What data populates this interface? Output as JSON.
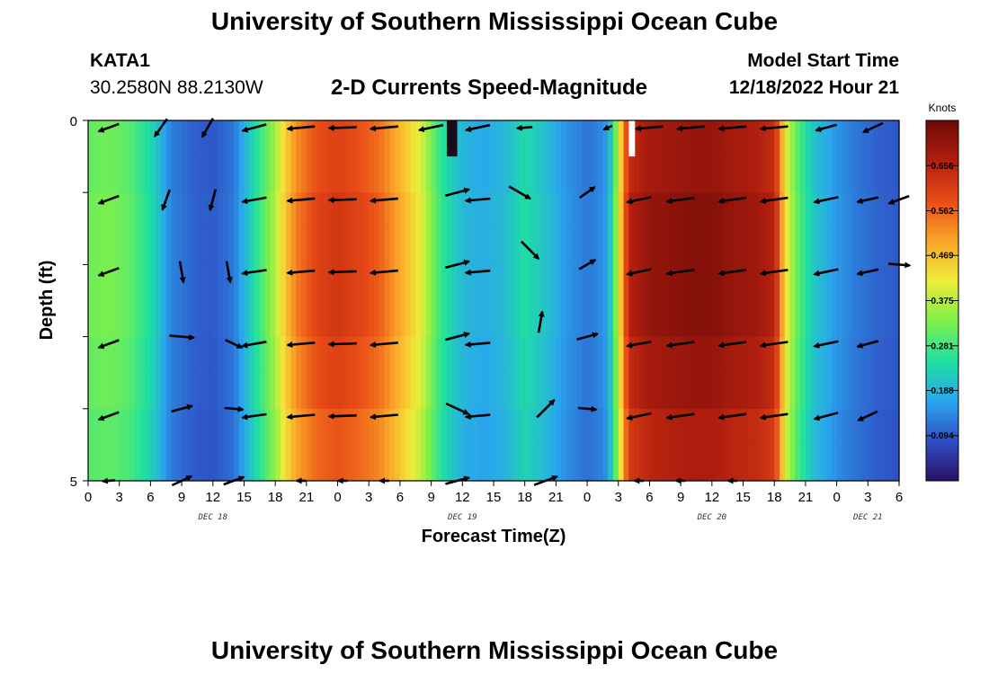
{
  "header": {
    "title": "University of Southern Mississippi Ocean Cube",
    "station": "KATA1",
    "coords": "30.2580N  88.2130W",
    "subtitle": "2-D Currents Speed-Magnitude",
    "model_start_label": "Model Start Time",
    "model_start_value": "12/18/2022 Hour 21"
  },
  "footer": {
    "title": "University of Southern Mississippi Ocean Cube"
  },
  "chart_data": {
    "type": "heatmap",
    "title": "2-D Currents Speed-Magnitude",
    "xlabel": "Forecast Time(Z)",
    "ylabel": "Depth (ft)",
    "colorbar_label": "Knots",
    "colorbar_ticks": [
      "0.094",
      "0.188",
      "0.281",
      "0.375",
      "0.469",
      "0.562",
      "0.656"
    ],
    "colorbar_range": [
      0,
      0.75
    ],
    "x_range_hours": [
      0,
      78
    ],
    "x_tick_labels": [
      "0",
      "3",
      "6",
      "9",
      "12",
      "15",
      "18",
      "21",
      "0",
      "3",
      "6",
      "9",
      "12",
      "15",
      "18",
      "21",
      "0",
      "3",
      "6",
      "9",
      "12",
      "15",
      "18",
      "21",
      "0",
      "3",
      "6"
    ],
    "date_labels": [
      {
        "label": "DEC 18",
        "hour": 12
      },
      {
        "label": "DEC 19",
        "hour": 36
      },
      {
        "label": "DEC 20",
        "hour": 60
      },
      {
        "label": "DEC 21",
        "hour": 75
      }
    ],
    "y_range": [
      0,
      5
    ],
    "y_tick_labels": [
      "0",
      "5"
    ],
    "speed_profile": {
      "hours": [
        0,
        2,
        4,
        6,
        8,
        10,
        12,
        14,
        15,
        16,
        17,
        18,
        19,
        20,
        22,
        24,
        26,
        28,
        30,
        32,
        33,
        34,
        35,
        36,
        38,
        40,
        42,
        44,
        46,
        48,
        49,
        50,
        50.5,
        51,
        51.5,
        52,
        54,
        56,
        58,
        60,
        62,
        64,
        66,
        66.5,
        67,
        68,
        69,
        70,
        72,
        74,
        76,
        78
      ],
      "values": [
        0.31,
        0.32,
        0.3,
        0.24,
        0.13,
        0.1,
        0.09,
        0.12,
        0.18,
        0.24,
        0.3,
        0.36,
        0.45,
        0.52,
        0.58,
        0.6,
        0.58,
        0.55,
        0.48,
        0.4,
        0.33,
        0.26,
        0.22,
        0.19,
        0.17,
        0.19,
        0.24,
        0.2,
        0.15,
        0.12,
        0.13,
        0.16,
        0.26,
        0.38,
        0.52,
        0.64,
        0.68,
        0.69,
        0.7,
        0.7,
        0.68,
        0.67,
        0.64,
        0.55,
        0.42,
        0.32,
        0.25,
        0.2,
        0.15,
        0.12,
        0.1,
        0.09
      ]
    },
    "depth_factor": [
      1.0,
      1.03,
      1.03,
      1.0,
      0.96,
      0.9
    ],
    "missing_cells": [
      {
        "hour_start": 34.5,
        "hour_end": 35.5,
        "depth_start": 0,
        "depth_end": 0.5,
        "fill": "#1a0a1a"
      },
      {
        "hour_start": 52,
        "hour_end": 52.6,
        "depth_start": 0,
        "depth_end": 0.5,
        "fill": "#ffffff"
      }
    ],
    "vectors": [
      {
        "hour": 2,
        "depth": 0.1,
        "dir": 250,
        "len": 0.7
      },
      {
        "hour": 7,
        "depth": 0.1,
        "dir": 215,
        "len": 0.7
      },
      {
        "hour": 11.5,
        "depth": 0.1,
        "dir": 210,
        "len": 0.7
      },
      {
        "hour": 16,
        "depth": 0.1,
        "dir": 255,
        "len": 0.8
      },
      {
        "hour": 20.5,
        "depth": 0.1,
        "dir": 265,
        "len": 0.9
      },
      {
        "hour": 24.5,
        "depth": 0.1,
        "dir": 268,
        "len": 0.9
      },
      {
        "hour": 28.5,
        "depth": 0.1,
        "dir": 265,
        "len": 0.9
      },
      {
        "hour": 33,
        "depth": 0.1,
        "dir": 258,
        "len": 0.8
      },
      {
        "hour": 37.5,
        "depth": 0.1,
        "dir": 258,
        "len": 0.8
      },
      {
        "hour": 42,
        "depth": 0.1,
        "dir": 265,
        "len": 0.5
      },
      {
        "hour": 50,
        "depth": 0.1,
        "dir": 245,
        "len": 0.3
      },
      {
        "hour": 54,
        "depth": 0.1,
        "dir": 265,
        "len": 0.9
      },
      {
        "hour": 58,
        "depth": 0.1,
        "dir": 265,
        "len": 0.9
      },
      {
        "hour": 62,
        "depth": 0.1,
        "dir": 265,
        "len": 0.9
      },
      {
        "hour": 66,
        "depth": 0.1,
        "dir": 265,
        "len": 0.9
      },
      {
        "hour": 71,
        "depth": 0.1,
        "dir": 255,
        "len": 0.7
      },
      {
        "hour": 75.5,
        "depth": 0.1,
        "dir": 245,
        "len": 0.7
      },
      {
        "hour": 2,
        "depth": 1.1,
        "dir": 250,
        "len": 0.7
      },
      {
        "hour": 7.5,
        "depth": 1.1,
        "dir": 200,
        "len": 0.7
      },
      {
        "hour": 12,
        "depth": 1.1,
        "dir": 195,
        "len": 0.7
      },
      {
        "hour": 16,
        "depth": 1.1,
        "dir": 260,
        "len": 0.8
      },
      {
        "hour": 20.5,
        "depth": 1.1,
        "dir": 265,
        "len": 0.9
      },
      {
        "hour": 24.5,
        "depth": 1.1,
        "dir": 268,
        "len": 0.9
      },
      {
        "hour": 28.5,
        "depth": 1.1,
        "dir": 265,
        "len": 0.9
      },
      {
        "hour": 35.5,
        "depth": 1.0,
        "dir": 75,
        "len": 0.8
      },
      {
        "hour": 37.5,
        "depth": 1.1,
        "dir": 265,
        "len": 0.8
      },
      {
        "hour": 41.5,
        "depth": 1.0,
        "dir": 120,
        "len": 0.8
      },
      {
        "hour": 48,
        "depth": 1.0,
        "dir": 55,
        "len": 0.6
      },
      {
        "hour": 53,
        "depth": 1.1,
        "dir": 258,
        "len": 0.8
      },
      {
        "hour": 57,
        "depth": 1.1,
        "dir": 262,
        "len": 0.9
      },
      {
        "hour": 62,
        "depth": 1.1,
        "dir": 262,
        "len": 0.9
      },
      {
        "hour": 66,
        "depth": 1.1,
        "dir": 262,
        "len": 0.9
      },
      {
        "hour": 71,
        "depth": 1.1,
        "dir": 258,
        "len": 0.8
      },
      {
        "hour": 75,
        "depth": 1.1,
        "dir": 258,
        "len": 0.7
      },
      {
        "hour": 78,
        "depth": 1.1,
        "dir": 250,
        "len": 0.7
      },
      {
        "hour": 2,
        "depth": 2.1,
        "dir": 250,
        "len": 0.7
      },
      {
        "hour": 9,
        "depth": 2.1,
        "dir": 170,
        "len": 0.7
      },
      {
        "hour": 13.5,
        "depth": 2.1,
        "dir": 170,
        "len": 0.7
      },
      {
        "hour": 16,
        "depth": 2.1,
        "dir": 262,
        "len": 0.8
      },
      {
        "hour": 20.5,
        "depth": 2.1,
        "dir": 265,
        "len": 0.9
      },
      {
        "hour": 24.5,
        "depth": 2.1,
        "dir": 268,
        "len": 0.9
      },
      {
        "hour": 28.5,
        "depth": 2.1,
        "dir": 265,
        "len": 0.9
      },
      {
        "hour": 35.5,
        "depth": 2.0,
        "dir": 75,
        "len": 0.8
      },
      {
        "hour": 37.5,
        "depth": 2.1,
        "dir": 265,
        "len": 0.8
      },
      {
        "hour": 42.5,
        "depth": 1.8,
        "dir": 135,
        "len": 0.8
      },
      {
        "hour": 48,
        "depth": 2.0,
        "dir": 60,
        "len": 0.6
      },
      {
        "hour": 53,
        "depth": 2.1,
        "dir": 258,
        "len": 0.8
      },
      {
        "hour": 57,
        "depth": 2.1,
        "dir": 262,
        "len": 0.9
      },
      {
        "hour": 62,
        "depth": 2.1,
        "dir": 262,
        "len": 0.9
      },
      {
        "hour": 66,
        "depth": 2.1,
        "dir": 262,
        "len": 0.9
      },
      {
        "hour": 71,
        "depth": 2.1,
        "dir": 258,
        "len": 0.8
      },
      {
        "hour": 75,
        "depth": 2.1,
        "dir": 258,
        "len": 0.7
      },
      {
        "hour": 78,
        "depth": 2.0,
        "dir": 95,
        "len": 0.7
      },
      {
        "hour": 2,
        "depth": 3.1,
        "dir": 250,
        "len": 0.7
      },
      {
        "hour": 9,
        "depth": 3.0,
        "dir": 95,
        "len": 0.8
      },
      {
        "hour": 14,
        "depth": 3.1,
        "dir": 115,
        "len": 0.6
      },
      {
        "hour": 16,
        "depth": 3.1,
        "dir": 260,
        "len": 0.8
      },
      {
        "hour": 20.5,
        "depth": 3.1,
        "dir": 265,
        "len": 0.9
      },
      {
        "hour": 24.5,
        "depth": 3.1,
        "dir": 268,
        "len": 0.9
      },
      {
        "hour": 28.5,
        "depth": 3.1,
        "dir": 265,
        "len": 0.9
      },
      {
        "hour": 35.5,
        "depth": 3.0,
        "dir": 75,
        "len": 0.8
      },
      {
        "hour": 37.5,
        "depth": 3.1,
        "dir": 265,
        "len": 0.8
      },
      {
        "hour": 43.5,
        "depth": 2.8,
        "dir": 10,
        "len": 0.7
      },
      {
        "hour": 48,
        "depth": 3.0,
        "dir": 75,
        "len": 0.7
      },
      {
        "hour": 53,
        "depth": 3.1,
        "dir": 260,
        "len": 0.8
      },
      {
        "hour": 57,
        "depth": 3.1,
        "dir": 262,
        "len": 0.9
      },
      {
        "hour": 62,
        "depth": 3.1,
        "dir": 262,
        "len": 0.9
      },
      {
        "hour": 66,
        "depth": 3.1,
        "dir": 262,
        "len": 0.9
      },
      {
        "hour": 71,
        "depth": 3.1,
        "dir": 258,
        "len": 0.8
      },
      {
        "hour": 75,
        "depth": 3.1,
        "dir": 255,
        "len": 0.7
      },
      {
        "hour": 2,
        "depth": 4.1,
        "dir": 250,
        "len": 0.7
      },
      {
        "hour": 9,
        "depth": 4.0,
        "dir": 75,
        "len": 0.7
      },
      {
        "hour": 14,
        "depth": 4.0,
        "dir": 95,
        "len": 0.6
      },
      {
        "hour": 16,
        "depth": 4.1,
        "dir": 262,
        "len": 0.8
      },
      {
        "hour": 20.5,
        "depth": 4.1,
        "dir": 265,
        "len": 0.9
      },
      {
        "hour": 24.5,
        "depth": 4.1,
        "dir": 268,
        "len": 0.9
      },
      {
        "hour": 28.5,
        "depth": 4.1,
        "dir": 265,
        "len": 0.9
      },
      {
        "hour": 35.5,
        "depth": 4.0,
        "dir": 115,
        "len": 0.8
      },
      {
        "hour": 37.5,
        "depth": 4.1,
        "dir": 265,
        "len": 0.8
      },
      {
        "hour": 44,
        "depth": 4.0,
        "dir": 45,
        "len": 0.8
      },
      {
        "hour": 48,
        "depth": 4.0,
        "dir": 95,
        "len": 0.6
      },
      {
        "hour": 53,
        "depth": 4.1,
        "dir": 258,
        "len": 0.8
      },
      {
        "hour": 57,
        "depth": 4.1,
        "dir": 262,
        "len": 0.9
      },
      {
        "hour": 62,
        "depth": 4.1,
        "dir": 262,
        "len": 0.9
      },
      {
        "hour": 66,
        "depth": 4.1,
        "dir": 262,
        "len": 0.9
      },
      {
        "hour": 71,
        "depth": 4.1,
        "dir": 255,
        "len": 0.8
      },
      {
        "hour": 75,
        "depth": 4.1,
        "dir": 245,
        "len": 0.7
      },
      {
        "hour": 2,
        "depth": 5.0,
        "dir": 265,
        "len": 0.4
      },
      {
        "hour": 9,
        "depth": 5.0,
        "dir": 65,
        "len": 0.7
      },
      {
        "hour": 14,
        "depth": 5.0,
        "dir": 70,
        "len": 0.7
      },
      {
        "hour": 20.5,
        "depth": 5.0,
        "dir": 270,
        "len": 0.3
      },
      {
        "hour": 24.5,
        "depth": 5.0,
        "dir": 270,
        "len": 0.3
      },
      {
        "hour": 28.5,
        "depth": 5.0,
        "dir": 270,
        "len": 0.3
      },
      {
        "hour": 35.5,
        "depth": 5.0,
        "dir": 75,
        "len": 0.8
      },
      {
        "hour": 44,
        "depth": 5.0,
        "dir": 70,
        "len": 0.8
      },
      {
        "hour": 53,
        "depth": 5.0,
        "dir": 270,
        "len": 0.3
      },
      {
        "hour": 57,
        "depth": 5.0,
        "dir": 270,
        "len": 0.3
      },
      {
        "hour": 62,
        "depth": 5.0,
        "dir": 270,
        "len": 0.3
      }
    ],
    "colors": {
      "scale": [
        "#2a1068",
        "#2f4fc5",
        "#2aa6ee",
        "#1fe0a0",
        "#7ef04a",
        "#f0ec3a",
        "#fba528",
        "#e84a16",
        "#b01e0e",
        "#6e0a08"
      ]
    }
  }
}
